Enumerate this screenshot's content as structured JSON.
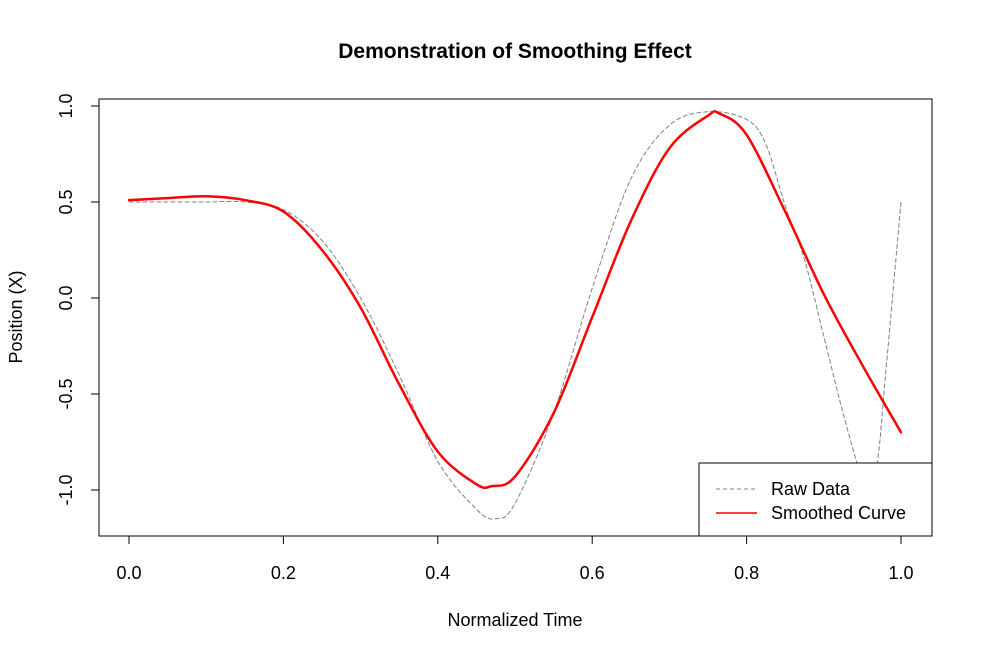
{
  "chart_data": {
    "type": "line",
    "title": "Demonstration of Smoothing Effect",
    "xlabel": "Normalized Time",
    "ylabel": "Position (X)",
    "xlim": [
      0.0,
      1.0
    ],
    "ylim": [
      -1.15,
      0.97
    ],
    "xticks": [
      "0.0",
      "0.2",
      "0.4",
      "0.6",
      "0.8",
      "1.0"
    ],
    "yticks": [
      "-1.0",
      "-0.5",
      "0.0",
      "0.5",
      "1.0"
    ],
    "grid": false,
    "legend_position": "bottom-right",
    "series": [
      {
        "name": "Raw Data",
        "color": "#808080",
        "style": "dashed",
        "x": [
          0.0,
          0.05,
          0.1,
          0.15,
          0.2,
          0.25,
          0.3,
          0.35,
          0.4,
          0.45,
          0.475,
          0.5,
          0.55,
          0.6,
          0.65,
          0.7,
          0.75,
          0.8,
          0.825,
          0.85,
          0.875,
          0.9,
          0.925,
          0.95,
          0.96,
          0.97,
          0.98,
          1.0
        ],
        "y": [
          0.5,
          0.5,
          0.5,
          0.5,
          0.46,
          0.3,
          0.0,
          -0.4,
          -0.85,
          -1.1,
          -1.15,
          -1.07,
          -0.6,
          0.05,
          0.62,
          0.9,
          0.97,
          0.93,
          0.8,
          0.48,
          0.2,
          -0.2,
          -0.6,
          -0.95,
          -1.0,
          -0.84,
          -0.4,
          0.5
        ]
      },
      {
        "name": "Smoothed Curve",
        "color": "#ff0000",
        "style": "solid",
        "x": [
          0.0,
          0.05,
          0.1,
          0.15,
          0.2,
          0.25,
          0.3,
          0.35,
          0.4,
          0.45,
          0.47,
          0.5,
          0.55,
          0.6,
          0.65,
          0.7,
          0.75,
          0.765,
          0.8,
          0.85,
          0.9,
          0.95,
          1.0
        ],
        "y": [
          0.51,
          0.52,
          0.53,
          0.51,
          0.45,
          0.25,
          -0.05,
          -0.45,
          -0.8,
          -0.97,
          -0.98,
          -0.93,
          -0.6,
          -0.1,
          0.4,
          0.78,
          0.95,
          0.96,
          0.85,
          0.45,
          0.02,
          -0.35,
          -0.7
        ]
      }
    ]
  }
}
